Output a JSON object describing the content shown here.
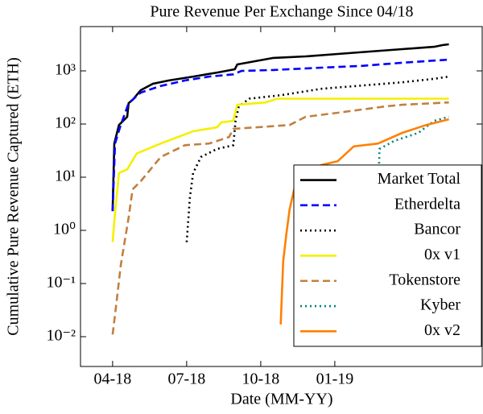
{
  "chart_data": {
    "type": "line",
    "title": "Pure Revenue Per Exchange Since 04/18",
    "xlabel": "Date (MM-YY)",
    "ylabel": "Cumulative Pure Revenue Captured (ETH)",
    "log_y": true,
    "legend": "lower right",
    "xlim": [
      -1.3,
      14.97
    ],
    "xticks": [
      {
        "value": 0,
        "label": "04-18"
      },
      {
        "value": 3,
        "label": "07-18"
      },
      {
        "value": 6,
        "label": "10-18"
      },
      {
        "value": 9,
        "label": "01-19"
      }
    ],
    "ylim": [
      0.00275,
      6810
    ],
    "yticks": [
      {
        "value": 0.01,
        "label": "10⁻²"
      },
      {
        "value": 0.1,
        "label": "10⁻¹"
      },
      {
        "value": 1,
        "label": "10⁰"
      },
      {
        "value": 10,
        "label": "10¹"
      },
      {
        "value": 100,
        "label": "10²"
      },
      {
        "value": 1000,
        "label": "10³"
      }
    ],
    "series": [
      {
        "name": "Market Total",
        "color": "#000000",
        "dash": "solid",
        "x": [
          0,
          0.07,
          0.26,
          0.59,
          0.65,
          0.81,
          1.14,
          1.63,
          2.28,
          3.26,
          4.23,
          4.95,
          5.05,
          6.51,
          7.82,
          9.12,
          10.42,
          11.73,
          13.03,
          13.36,
          13.62
        ],
        "values": [
          2.3,
          43,
          96,
          137,
          248,
          284,
          433,
          573,
          660,
          780,
          930,
          1070,
          1320,
          1750,
          1870,
          2080,
          2310,
          2560,
          2840,
          3050,
          3160
        ]
      },
      {
        "name": "Etherdelta",
        "color": "#0000ff",
        "dash": "dashed",
        "x": [
          0,
          0.1,
          0.33,
          0.65,
          1.14,
          1.95,
          2.93,
          3.91,
          4.89,
          5.22,
          6.52,
          8.47,
          10.1,
          11.73,
          13.62
        ],
        "values": [
          2.3,
          43,
          96,
          248,
          390,
          520,
          660,
          780,
          860,
          1000,
          1040,
          1150,
          1240,
          1420,
          1630
        ]
      },
      {
        "name": "Bancor",
        "color": "#000000",
        "dash": "dotted",
        "x": [
          3.0,
          3.13,
          3.26,
          3.58,
          4.23,
          4.89,
          4.98,
          5.11,
          5.54,
          6.84,
          8.47,
          10.1,
          11.73,
          13.03,
          13.62
        ],
        "values": [
          0.6,
          4.2,
          12,
          24,
          34,
          40,
          115,
          215,
          300,
          350,
          460,
          530,
          610,
          710,
          780
        ]
      },
      {
        "name": "0x v1",
        "color": "#f5ef00",
        "dash": "solid",
        "x": [
          0,
          0.1,
          0.26,
          0.59,
          0.98,
          1.95,
          3.26,
          4.23,
          4.4,
          4.89,
          5.05,
          6.19,
          6.68,
          13.62
        ],
        "values": [
          0.6,
          2.1,
          12,
          14,
          28,
          43,
          73,
          87,
          107,
          115,
          230,
          255,
          300,
          300
        ]
      },
      {
        "name": "Tokenstore",
        "color": "#c08040",
        "dash": "dashed",
        "x": [
          0,
          0.16,
          0.33,
          0.65,
          0.81,
          1.14,
          1.95,
          2.93,
          3.91,
          4.72,
          4.89,
          5.86,
          7.17,
          7.82,
          9.12,
          11.07,
          11.73,
          13.62
        ],
        "values": [
          0.011,
          0.045,
          0.22,
          1.75,
          5.9,
          8.4,
          24,
          40,
          43,
          57,
          81,
          87,
          96,
          137,
          163,
          215,
          230,
          255
        ]
      },
      {
        "name": "Kyber",
        "color": "#008080",
        "dash": "dotted",
        "x": [
          10.68,
          10.75,
          10.81,
          11.4,
          12.38,
          13.03,
          13.62
        ],
        "values": [
          0.18,
          3.5,
          34,
          48,
          68,
          115,
          137
        ]
      },
      {
        "name": "0x v2",
        "color": "#ff8000",
        "dash": "solid",
        "x": [
          6.81,
          6.91,
          7.04,
          7.17,
          7.43,
          7.65,
          8.47,
          9.12,
          9.77,
          10.75,
          11.73,
          12.7,
          13.62
        ],
        "values": [
          0.017,
          0.26,
          0.87,
          2.5,
          8.4,
          12,
          17,
          20,
          38,
          43,
          68,
          96,
          123
        ]
      }
    ]
  }
}
